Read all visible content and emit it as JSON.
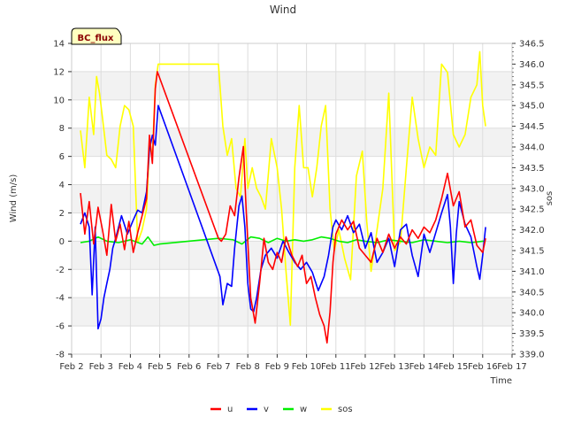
{
  "chart_data": {
    "type": "line",
    "title": "Wind",
    "xlabel": "Time",
    "ylabel": "Wind (m/s)",
    "y2label": "sos",
    "site_label": "BC_flux",
    "x_ticks": [
      "Feb 2",
      "Feb 3",
      "Feb 4",
      "Feb 5",
      "Feb 6",
      "Feb 7",
      "Feb 8",
      "Feb 9",
      "Feb 10",
      "Feb 11",
      "Feb 12",
      "Feb 13",
      "Feb 14",
      "Feb 15",
      "Feb 16",
      "Feb 17"
    ],
    "xlim": [
      2,
      17
    ],
    "ylim": [
      -8,
      14
    ],
    "y_ticks": [
      -8,
      -6,
      -4,
      -2,
      0,
      2,
      4,
      6,
      8,
      10,
      12,
      14
    ],
    "y2lim": [
      339.0,
      346.5
    ],
    "y2_ticks": [
      "339.0",
      "339.5",
      "340.0",
      "340.5",
      "341.0",
      "341.5",
      "342.0",
      "342.5",
      "343.0",
      "343.5",
      "344.0",
      "344.5",
      "345.0",
      "345.5",
      "346.0",
      "346.5"
    ],
    "grid": true,
    "legend_position": "bottom",
    "series": [
      {
        "name": "u",
        "color": "#ff0000",
        "axis": "left",
        "points": [
          [
            2.3,
            3.4
          ],
          [
            2.45,
            0.5
          ],
          [
            2.6,
            2.8
          ],
          [
            2.75,
            -0.2
          ],
          [
            2.9,
            2.4
          ],
          [
            3.05,
            0.8
          ],
          [
            3.2,
            -1.0
          ],
          [
            3.35,
            2.6
          ],
          [
            3.5,
            0.0
          ],
          [
            3.65,
            1.2
          ],
          [
            3.8,
            -0.6
          ],
          [
            3.95,
            1.4
          ],
          [
            4.1,
            -0.8
          ],
          [
            4.25,
            0.6
          ],
          [
            4.4,
            1.8
          ],
          [
            4.55,
            3.0
          ],
          [
            4.65,
            7.5
          ],
          [
            4.75,
            5.5
          ],
          [
            4.85,
            10.8
          ],
          [
            4.92,
            12.0
          ],
          [
            7.0,
            0.2
          ],
          [
            7.1,
            0.0
          ],
          [
            7.25,
            0.5
          ],
          [
            7.4,
            2.5
          ],
          [
            7.55,
            1.8
          ],
          [
            7.7,
            4.5
          ],
          [
            7.85,
            6.7
          ],
          [
            7.95,
            2.0
          ],
          [
            8.1,
            -4.0
          ],
          [
            8.25,
            -5.8
          ],
          [
            8.4,
            -3.0
          ],
          [
            8.55,
            0.2
          ],
          [
            8.7,
            -1.5
          ],
          [
            8.85,
            -2.0
          ],
          [
            9.0,
            -0.8
          ],
          [
            9.15,
            -1.5
          ],
          [
            9.3,
            0.3
          ],
          [
            9.5,
            -1.0
          ],
          [
            9.7,
            -1.8
          ],
          [
            9.85,
            -1.0
          ],
          [
            10.0,
            -3.0
          ],
          [
            10.15,
            -2.5
          ],
          [
            10.3,
            -4.0
          ],
          [
            10.45,
            -5.2
          ],
          [
            10.6,
            -6.0
          ],
          [
            10.7,
            -7.2
          ],
          [
            10.8,
            -5.0
          ],
          [
            10.9,
            -1.5
          ],
          [
            11.0,
            0.5
          ],
          [
            11.2,
            1.5
          ],
          [
            11.4,
            0.8
          ],
          [
            11.6,
            1.4
          ],
          [
            11.8,
            -0.5
          ],
          [
            12.0,
            -1.0
          ],
          [
            12.2,
            -1.5
          ],
          [
            12.4,
            0.2
          ],
          [
            12.6,
            -0.8
          ],
          [
            12.8,
            0.5
          ],
          [
            13.0,
            -0.5
          ],
          [
            13.2,
            0.3
          ],
          [
            13.4,
            -0.2
          ],
          [
            13.6,
            0.8
          ],
          [
            13.8,
            0.2
          ],
          [
            14.0,
            1.0
          ],
          [
            14.2,
            0.6
          ],
          [
            14.4,
            1.5
          ],
          [
            14.6,
            3.0
          ],
          [
            14.8,
            4.8
          ],
          [
            15.0,
            2.5
          ],
          [
            15.2,
            3.5
          ],
          [
            15.4,
            1.0
          ],
          [
            15.6,
            1.5
          ],
          [
            15.8,
            -0.3
          ],
          [
            16.0,
            -0.8
          ],
          [
            16.1,
            0.2
          ]
        ]
      },
      {
        "name": "v",
        "color": "#0000ff",
        "axis": "left",
        "points": [
          [
            2.3,
            1.2
          ],
          [
            2.45,
            2.0
          ],
          [
            2.6,
            1.0
          ],
          [
            2.7,
            -3.8
          ],
          [
            2.8,
            1.0
          ],
          [
            2.9,
            -6.2
          ],
          [
            3.0,
            -5.5
          ],
          [
            3.1,
            -4.0
          ],
          [
            3.2,
            -3.0
          ],
          [
            3.3,
            -2.0
          ],
          [
            3.4,
            -0.5
          ],
          [
            3.5,
            0.2
          ],
          [
            3.7,
            1.8
          ],
          [
            3.9,
            0.5
          ],
          [
            4.1,
            1.5
          ],
          [
            4.25,
            2.2
          ],
          [
            4.4,
            2.0
          ],
          [
            4.55,
            3.5
          ],
          [
            4.65,
            6.5
          ],
          [
            4.75,
            7.5
          ],
          [
            4.85,
            6.8
          ],
          [
            4.95,
            9.6
          ],
          [
            7.05,
            -2.5
          ],
          [
            7.15,
            -4.5
          ],
          [
            7.3,
            -3.0
          ],
          [
            7.45,
            -3.2
          ],
          [
            7.55,
            -0.5
          ],
          [
            7.7,
            2.5
          ],
          [
            7.8,
            3.2
          ],
          [
            7.9,
            1.0
          ],
          [
            8.0,
            -3.0
          ],
          [
            8.1,
            -4.8
          ],
          [
            8.2,
            -5.0
          ],
          [
            8.3,
            -4.0
          ],
          [
            8.45,
            -2.0
          ],
          [
            8.6,
            -1.0
          ],
          [
            8.8,
            -0.5
          ],
          [
            9.0,
            -1.2
          ],
          [
            9.2,
            0.0
          ],
          [
            9.4,
            -0.8
          ],
          [
            9.6,
            -1.5
          ],
          [
            9.8,
            -2.0
          ],
          [
            10.0,
            -1.5
          ],
          [
            10.2,
            -2.2
          ],
          [
            10.4,
            -3.5
          ],
          [
            10.6,
            -2.5
          ],
          [
            10.75,
            -1.0
          ],
          [
            10.9,
            1.0
          ],
          [
            11.0,
            1.5
          ],
          [
            11.2,
            0.8
          ],
          [
            11.4,
            1.8
          ],
          [
            11.6,
            0.6
          ],
          [
            11.8,
            1.2
          ],
          [
            12.0,
            -0.5
          ],
          [
            12.2,
            0.6
          ],
          [
            12.4,
            -1.5
          ],
          [
            12.6,
            -0.8
          ],
          [
            12.8,
            0.2
          ],
          [
            13.0,
            -1.8
          ],
          [
            13.2,
            0.8
          ],
          [
            13.4,
            1.2
          ],
          [
            13.6,
            -1.0
          ],
          [
            13.8,
            -2.5
          ],
          [
            14.0,
            0.5
          ],
          [
            14.2,
            -0.8
          ],
          [
            14.4,
            0.6
          ],
          [
            14.6,
            2.0
          ],
          [
            14.8,
            3.3
          ],
          [
            14.9,
            1.0
          ],
          [
            15.0,
            -3.0
          ],
          [
            15.1,
            0.5
          ],
          [
            15.2,
            2.8
          ],
          [
            15.4,
            1.2
          ],
          [
            15.6,
            0.3
          ],
          [
            15.8,
            -1.8
          ],
          [
            15.9,
            -2.7
          ],
          [
            16.0,
            -1.0
          ],
          [
            16.1,
            1.0
          ]
        ]
      },
      {
        "name": "w",
        "color": "#00ee00",
        "axis": "left",
        "points": [
          [
            2.3,
            -0.1
          ],
          [
            2.6,
            0.0
          ],
          [
            2.9,
            0.3
          ],
          [
            3.2,
            0.0
          ],
          [
            3.6,
            -0.1
          ],
          [
            4.0,
            0.1
          ],
          [
            4.4,
            -0.2
          ],
          [
            4.6,
            0.3
          ],
          [
            4.8,
            -0.3
          ],
          [
            5.0,
            -0.2
          ],
          [
            7.0,
            0.2
          ],
          [
            7.5,
            0.1
          ],
          [
            7.8,
            -0.2
          ],
          [
            8.1,
            0.3
          ],
          [
            8.4,
            0.2
          ],
          [
            8.7,
            -0.1
          ],
          [
            9.0,
            0.2
          ],
          [
            9.3,
            0.0
          ],
          [
            9.6,
            0.1
          ],
          [
            9.9,
            0.0
          ],
          [
            10.2,
            0.1
          ],
          [
            10.5,
            0.3
          ],
          [
            10.8,
            0.2
          ],
          [
            11.1,
            0.0
          ],
          [
            11.4,
            -0.1
          ],
          [
            11.7,
            0.1
          ],
          [
            12.0,
            0.0
          ],
          [
            12.4,
            -0.1
          ],
          [
            12.8,
            0.1
          ],
          [
            13.2,
            0.0
          ],
          [
            13.6,
            -0.1
          ],
          [
            14.0,
            0.1
          ],
          [
            14.4,
            0.0
          ],
          [
            14.8,
            -0.1
          ],
          [
            15.2,
            0.0
          ],
          [
            15.6,
            -0.1
          ],
          [
            16.0,
            0.0
          ],
          [
            16.1,
            0.0
          ]
        ]
      },
      {
        "name": "sos",
        "color": "#ffff00",
        "axis": "right",
        "points": [
          [
            2.3,
            344.4
          ],
          [
            2.45,
            343.5
          ],
          [
            2.6,
            345.2
          ],
          [
            2.75,
            344.3
          ],
          [
            2.85,
            345.7
          ],
          [
            2.95,
            345.3
          ],
          [
            3.05,
            344.7
          ],
          [
            3.2,
            343.8
          ],
          [
            3.35,
            343.7
          ],
          [
            3.5,
            343.5
          ],
          [
            3.65,
            344.5
          ],
          [
            3.8,
            345.0
          ],
          [
            3.95,
            344.9
          ],
          [
            4.1,
            344.5
          ],
          [
            4.25,
            341.7
          ],
          [
            4.4,
            342.0
          ],
          [
            4.55,
            342.5
          ],
          [
            4.65,
            344.0
          ],
          [
            4.75,
            343.8
          ],
          [
            4.85,
            345.5
          ],
          [
            4.95,
            346.0
          ],
          [
            7.0,
            346.0
          ],
          [
            7.15,
            344.5
          ],
          [
            7.3,
            343.8
          ],
          [
            7.45,
            344.2
          ],
          [
            7.6,
            343.0
          ],
          [
            7.75,
            342.8
          ],
          [
            7.9,
            344.2
          ],
          [
            8.0,
            343.0
          ],
          [
            8.15,
            343.5
          ],
          [
            8.3,
            343.0
          ],
          [
            8.45,
            342.8
          ],
          [
            8.6,
            342.5
          ],
          [
            8.8,
            344.2
          ],
          [
            9.0,
            343.5
          ],
          [
            9.15,
            342.5
          ],
          [
            9.3,
            341.0
          ],
          [
            9.45,
            339.7
          ],
          [
            9.6,
            343.5
          ],
          [
            9.75,
            345.0
          ],
          [
            9.9,
            343.5
          ],
          [
            10.05,
            343.5
          ],
          [
            10.2,
            342.8
          ],
          [
            10.35,
            343.5
          ],
          [
            10.5,
            344.5
          ],
          [
            10.65,
            345.0
          ],
          [
            10.8,
            342.5
          ],
          [
            10.95,
            341.5
          ],
          [
            11.1,
            342.0
          ],
          [
            11.3,
            341.3
          ],
          [
            11.5,
            340.8
          ],
          [
            11.7,
            343.3
          ],
          [
            11.9,
            343.9
          ],
          [
            12.05,
            342.2
          ],
          [
            12.2,
            341.0
          ],
          [
            12.4,
            342.0
          ],
          [
            12.6,
            343.0
          ],
          [
            12.8,
            345.3
          ],
          [
            13.0,
            341.5
          ],
          [
            13.2,
            341.7
          ],
          [
            13.4,
            343.5
          ],
          [
            13.6,
            345.2
          ],
          [
            13.8,
            344.2
          ],
          [
            14.0,
            343.5
          ],
          [
            14.2,
            344.0
          ],
          [
            14.4,
            343.8
          ],
          [
            14.6,
            346.0
          ],
          [
            14.8,
            345.8
          ],
          [
            15.0,
            344.3
          ],
          [
            15.2,
            344.0
          ],
          [
            15.4,
            344.3
          ],
          [
            15.6,
            345.2
          ],
          [
            15.8,
            345.5
          ],
          [
            15.9,
            346.3
          ],
          [
            16.0,
            345.0
          ],
          [
            16.1,
            344.5
          ]
        ]
      }
    ]
  }
}
